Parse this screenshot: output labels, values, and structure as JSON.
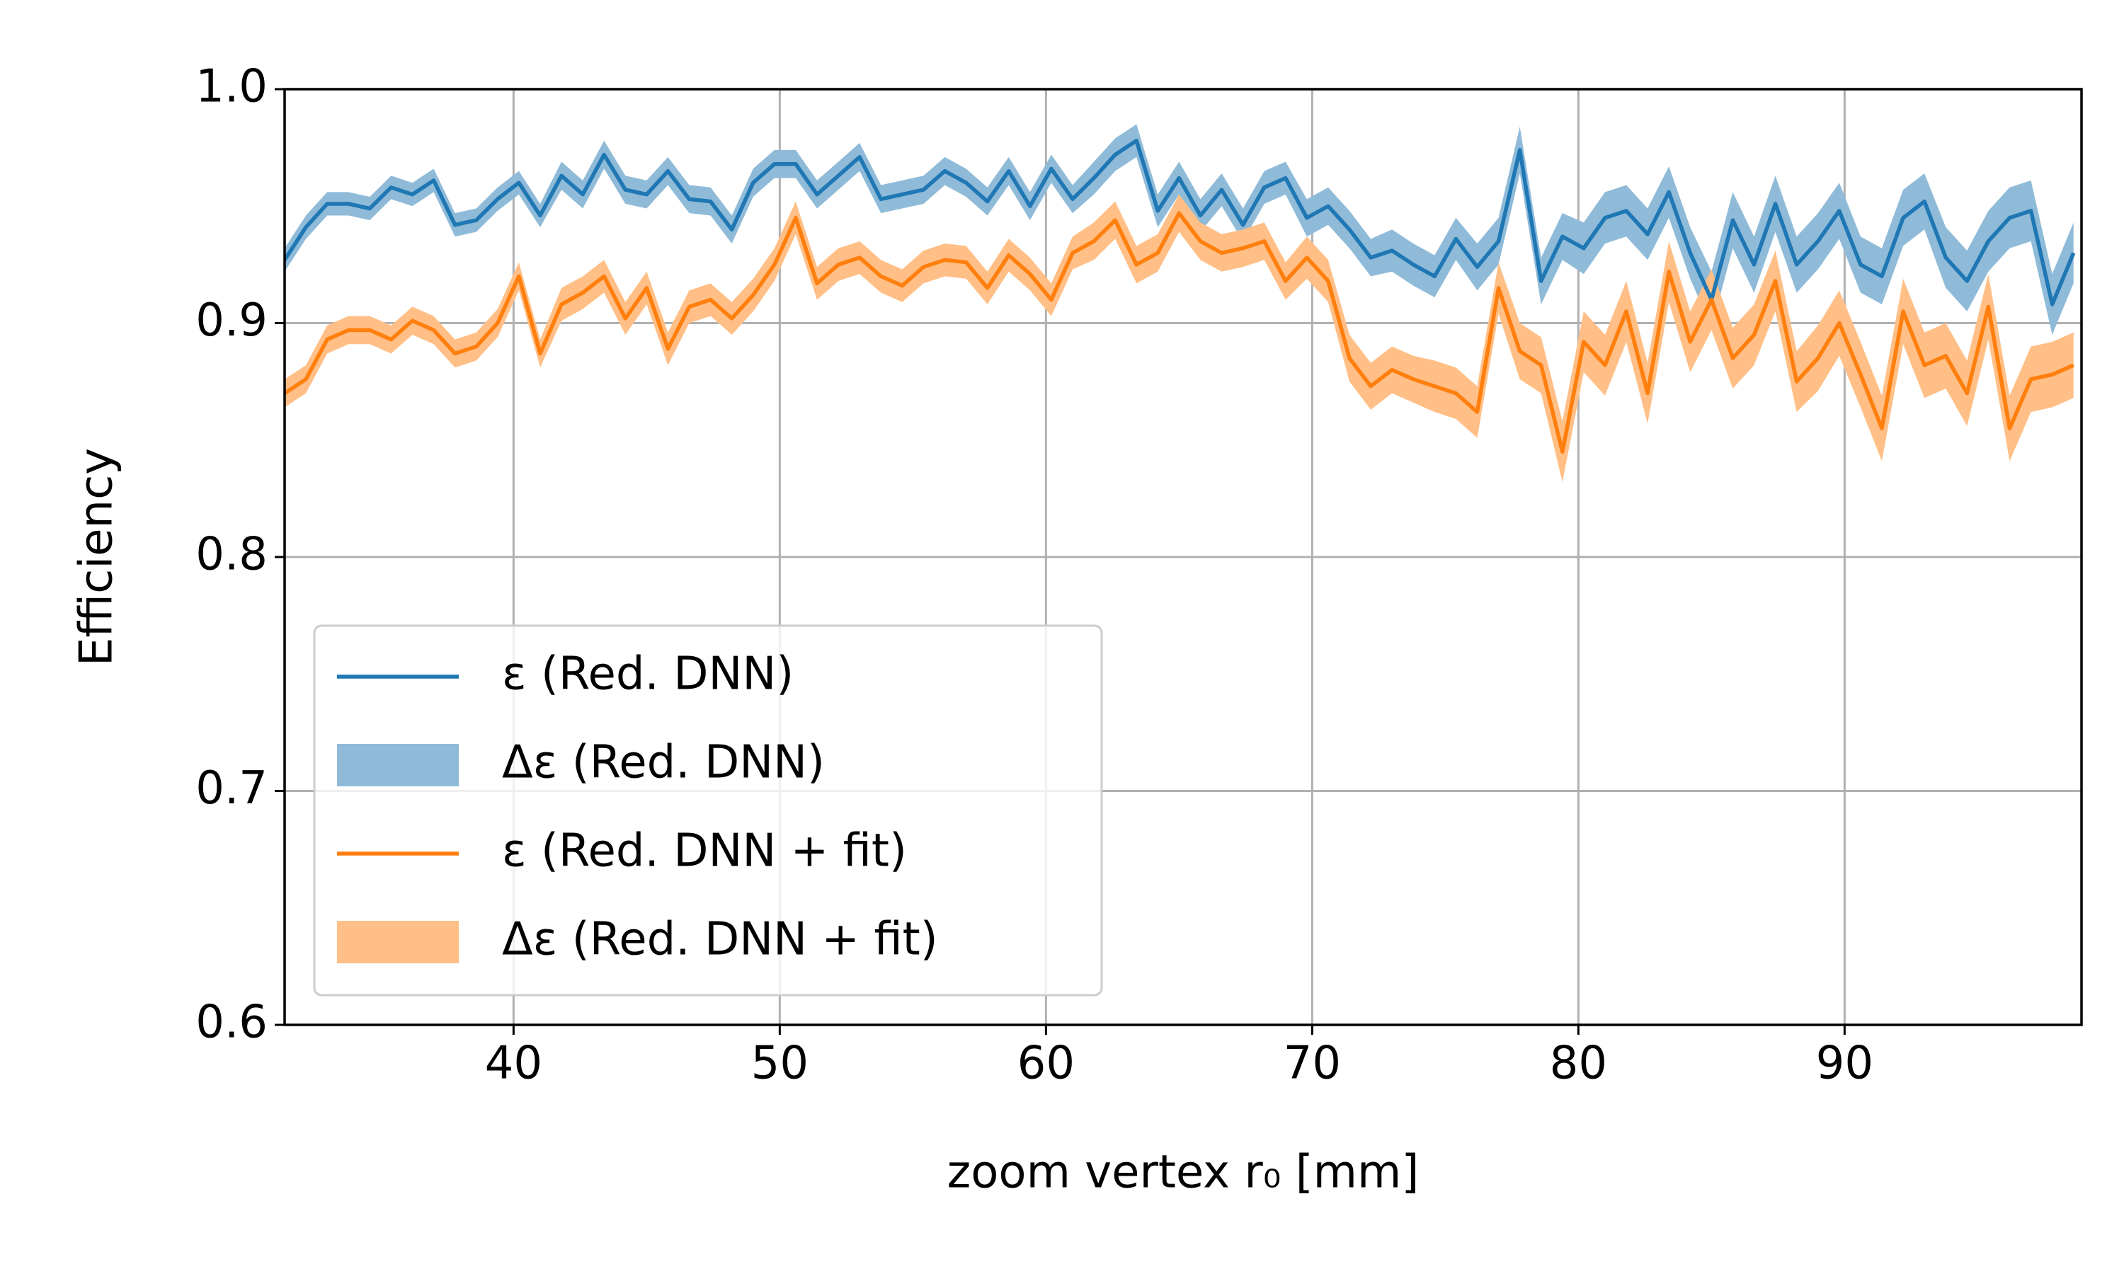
{
  "chart_data": {
    "type": "line",
    "xlabel": "zoom vertex r₀ [mm]",
    "ylabel": "Efficiency",
    "xlim": [
      31.4,
      98.9
    ],
    "ylim": [
      0.6,
      1.0
    ],
    "xticks": [
      40,
      50,
      60,
      70,
      80,
      90
    ],
    "yticks": [
      {
        "value": 0.6,
        "label": "0.6"
      },
      {
        "value": 0.7,
        "label": "0.7"
      },
      {
        "value": 0.8,
        "label": "0.8"
      },
      {
        "value": 0.9,
        "label": "0.9"
      },
      {
        "value": 1.0,
        "label": "1.0"
      }
    ],
    "grid": true,
    "legend": "lower left",
    "x": [
      31.4,
      32.2,
      33.0,
      33.8,
      34.6,
      35.4,
      36.2,
      37.0,
      37.8,
      38.6,
      39.4,
      40.2,
      41.0,
      41.8,
      42.6,
      43.4,
      44.2,
      45.0,
      45.8,
      46.6,
      47.4,
      48.2,
      49.0,
      49.8,
      50.6,
      51.4,
      52.2,
      53.0,
      53.8,
      54.6,
      55.4,
      56.2,
      57.0,
      57.8,
      58.6,
      59.4,
      60.2,
      61.0,
      61.8,
      62.6,
      63.4,
      64.2,
      65.0,
      65.8,
      66.6,
      67.4,
      68.2,
      69.0,
      69.8,
      70.6,
      71.4,
      72.2,
      73.0,
      73.8,
      74.6,
      75.4,
      76.2,
      77.0,
      77.8,
      78.6,
      79.4,
      80.2,
      81.0,
      81.8,
      82.6,
      83.4,
      84.2,
      85.0,
      85.8,
      86.6,
      87.4,
      88.2,
      89.0,
      89.8,
      90.6,
      91.4,
      92.2,
      93.0,
      93.8,
      94.6,
      95.4,
      96.2,
      97.0,
      97.8,
      98.6
    ],
    "series": [
      {
        "name": "ε (Red. DNN)",
        "color": "#1f77b4",
        "band_name": "Δε (Red. DNN)",
        "band_color": "#8fbbd9",
        "values": [
          0.927,
          0.941,
          0.951,
          0.951,
          0.949,
          0.958,
          0.955,
          0.961,
          0.942,
          0.944,
          0.953,
          0.96,
          0.946,
          0.963,
          0.955,
          0.972,
          0.957,
          0.955,
          0.965,
          0.953,
          0.952,
          0.94,
          0.96,
          0.968,
          0.968,
          0.955,
          0.963,
          0.971,
          0.953,
          0.955,
          0.957,
          0.965,
          0.96,
          0.952,
          0.965,
          0.95,
          0.966,
          0.953,
          0.962,
          0.972,
          0.978,
          0.948,
          0.962,
          0.946,
          0.957,
          0.942,
          0.958,
          0.962,
          0.945,
          0.95,
          0.94,
          0.928,
          0.931,
          0.925,
          0.92,
          0.936,
          0.924,
          0.935,
          0.974,
          0.918,
          0.937,
          0.932,
          0.945,
          0.948,
          0.938,
          0.956,
          0.93,
          0.91,
          0.944,
          0.925,
          0.951,
          0.925,
          0.935,
          0.948,
          0.925,
          0.92,
          0.945,
          0.952,
          0.928,
          0.918,
          0.935,
          0.945,
          0.948,
          0.908,
          0.93
        ],
        "errors": [
          0.005,
          0.005,
          0.005,
          0.005,
          0.005,
          0.005,
          0.005,
          0.005,
          0.005,
          0.005,
          0.005,
          0.005,
          0.005,
          0.006,
          0.006,
          0.006,
          0.006,
          0.006,
          0.006,
          0.006,
          0.006,
          0.006,
          0.006,
          0.006,
          0.006,
          0.006,
          0.006,
          0.006,
          0.006,
          0.006,
          0.006,
          0.006,
          0.006,
          0.006,
          0.006,
          0.006,
          0.006,
          0.006,
          0.007,
          0.007,
          0.007,
          0.007,
          0.007,
          0.007,
          0.007,
          0.007,
          0.007,
          0.007,
          0.008,
          0.008,
          0.008,
          0.008,
          0.009,
          0.009,
          0.009,
          0.009,
          0.01,
          0.01,
          0.01,
          0.01,
          0.01,
          0.011,
          0.011,
          0.011,
          0.011,
          0.011,
          0.011,
          0.012,
          0.012,
          0.012,
          0.012,
          0.012,
          0.012,
          0.012,
          0.012,
          0.012,
          0.012,
          0.012,
          0.013,
          0.013,
          0.013,
          0.013,
          0.013,
          0.013,
          0.013
        ]
      },
      {
        "name": "ε (Red. DNN + fit)",
        "color": "#ff7f0e",
        "band_name": "Δε (Red. DNN + fit)",
        "band_color": "#ffbf86",
        "values": [
          0.87,
          0.876,
          0.893,
          0.897,
          0.897,
          0.893,
          0.901,
          0.897,
          0.887,
          0.89,
          0.9,
          0.92,
          0.887,
          0.908,
          0.913,
          0.92,
          0.902,
          0.915,
          0.889,
          0.907,
          0.91,
          0.902,
          0.912,
          0.925,
          0.945,
          0.917,
          0.925,
          0.928,
          0.92,
          0.916,
          0.924,
          0.927,
          0.926,
          0.915,
          0.929,
          0.921,
          0.91,
          0.93,
          0.935,
          0.944,
          0.925,
          0.93,
          0.947,
          0.935,
          0.93,
          0.932,
          0.935,
          0.918,
          0.928,
          0.918,
          0.885,
          0.873,
          0.88,
          0.876,
          0.873,
          0.87,
          0.862,
          0.915,
          0.888,
          0.882,
          0.845,
          0.892,
          0.882,
          0.905,
          0.87,
          0.922,
          0.892,
          0.91,
          0.885,
          0.895,
          0.918,
          0.875,
          0.885,
          0.9,
          0.878,
          0.855,
          0.905,
          0.882,
          0.886,
          0.87,
          0.907,
          0.855,
          0.876,
          0.878,
          0.882
        ],
        "errors": [
          0.006,
          0.006,
          0.006,
          0.006,
          0.006,
          0.006,
          0.006,
          0.006,
          0.006,
          0.006,
          0.006,
          0.006,
          0.006,
          0.007,
          0.007,
          0.007,
          0.007,
          0.007,
          0.007,
          0.007,
          0.007,
          0.007,
          0.007,
          0.007,
          0.007,
          0.007,
          0.007,
          0.007,
          0.007,
          0.007,
          0.007,
          0.007,
          0.007,
          0.007,
          0.007,
          0.007,
          0.007,
          0.007,
          0.008,
          0.008,
          0.008,
          0.008,
          0.008,
          0.008,
          0.008,
          0.008,
          0.008,
          0.008,
          0.009,
          0.009,
          0.01,
          0.01,
          0.01,
          0.01,
          0.011,
          0.011,
          0.011,
          0.011,
          0.012,
          0.012,
          0.013,
          0.013,
          0.013,
          0.013,
          0.013,
          0.013,
          0.013,
          0.013,
          0.013,
          0.013,
          0.013,
          0.013,
          0.014,
          0.014,
          0.014,
          0.014,
          0.014,
          0.014,
          0.014,
          0.014,
          0.014,
          0.014,
          0.014,
          0.014,
          0.014
        ]
      }
    ]
  }
}
